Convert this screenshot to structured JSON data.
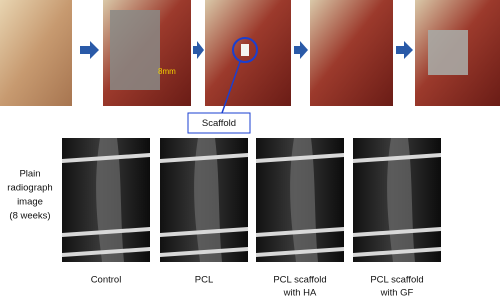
{
  "top_row": {
    "measurement_label": "8mm",
    "callout": "Scaffold"
  },
  "radiograph_label": [
    "Plain",
    "radiograph",
    "image",
    "(8 weeks)"
  ],
  "groups": [
    [
      "Control"
    ],
    [
      "PCL"
    ],
    [
      "PCL scaffold",
      "with HA"
    ],
    [
      "PCL scaffold",
      "with GF"
    ]
  ]
}
